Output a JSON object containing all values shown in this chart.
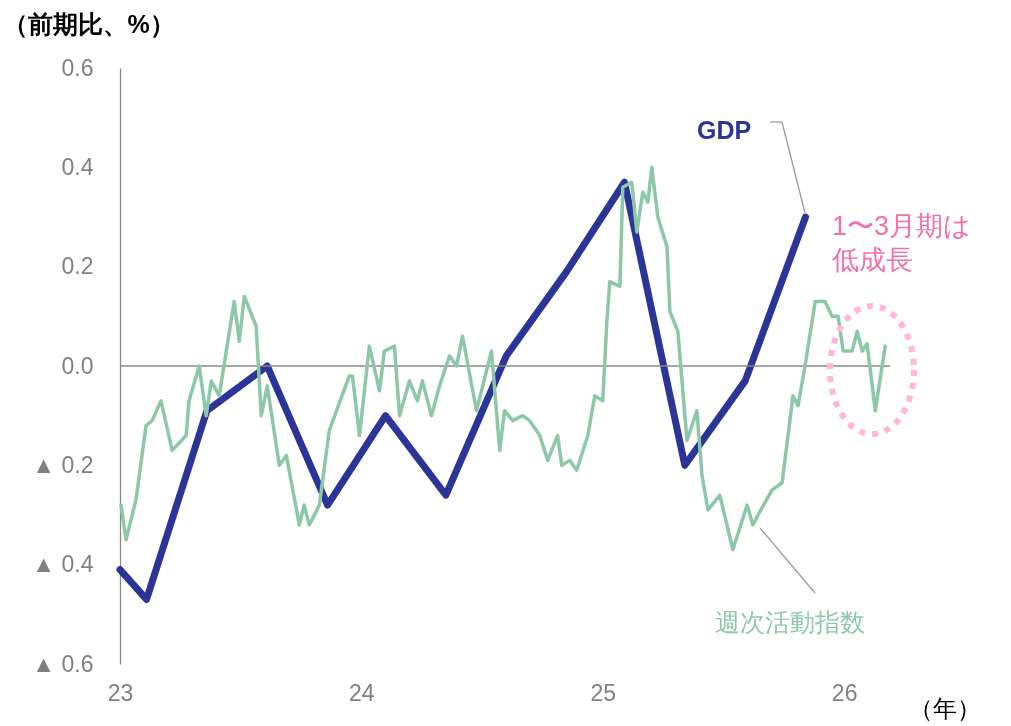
{
  "chart_data": {
    "type": "line",
    "ylabel": "（前期比、%）",
    "xlabel": "（年）",
    "xlim": [
      23,
      26.19
    ],
    "xticks": [
      23,
      24,
      25,
      26
    ],
    "ylim": [
      -0.6,
      0.6
    ],
    "yticks": [
      {
        "value": -0.6,
        "label": "▲ 0.6"
      },
      {
        "value": -0.4,
        "label": "▲ 0.4"
      },
      {
        "value": -0.2,
        "label": "▲ 0.2"
      },
      {
        "value": 0,
        "label": "0.0"
      },
      {
        "value": 0.2,
        "label": "0.2"
      },
      {
        "value": 0.4,
        "label": "0.4"
      },
      {
        "value": 0.6,
        "label": "0.6"
      }
    ],
    "ref_lines": [
      {
        "axis": "y",
        "value": 0,
        "color": "#888888"
      }
    ],
    "annotations": [
      "1〜3月期は低成長"
    ],
    "series": [
      {
        "name": "GDP",
        "color": "#2b3497",
        "x": [
          23.0,
          23.11,
          23.36,
          23.61,
          23.86,
          24.1,
          24.35,
          24.6,
          24.85,
          25.09,
          25.34,
          25.59,
          25.84
        ],
        "values": [
          -0.41,
          -0.47,
          -0.09,
          0.0,
          -0.28,
          -0.1,
          -0.26,
          0.02,
          0.19,
          0.37,
          -0.2,
          -0.03,
          0.3
        ]
      },
      {
        "name": "週次活動指数",
        "color": "#8cc8a8",
        "x": [
          23.004,
          23.025,
          23.066,
          23.108,
          23.133,
          23.17,
          23.216,
          23.274,
          23.286,
          23.328,
          23.357,
          23.378,
          23.411,
          23.473,
          23.494,
          23.515,
          23.564,
          23.585,
          23.61,
          23.66,
          23.689,
          23.743,
          23.763,
          23.784,
          23.826,
          23.867,
          23.95,
          23.963,
          23.992,
          24.033,
          24.075,
          24.095,
          24.137,
          24.158,
          24.199,
          24.232,
          24.253,
          24.29,
          24.324,
          24.365,
          24.394,
          24.419,
          24.477,
          24.539,
          24.573,
          24.593,
          24.627,
          24.668,
          24.697,
          24.739,
          24.772,
          24.813,
          24.83,
          24.863,
          24.892,
          24.938,
          24.967,
          25.0,
          25.017,
          25.029,
          25.071,
          25.083,
          25.12,
          25.141,
          25.166,
          25.187,
          25.203,
          25.228,
          25.266,
          25.278,
          25.311,
          25.349,
          25.39,
          25.411,
          25.436,
          25.485,
          25.539,
          25.598,
          25.622,
          25.643,
          25.701,
          25.743,
          25.788,
          25.809,
          25.838,
          25.88,
          25.921,
          25.95,
          25.975,
          25.996,
          26.033,
          26.054,
          26.075,
          26.095,
          26.129,
          26.17
        ],
        "values": [
          -0.28,
          -0.35,
          -0.27,
          -0.12,
          -0.11,
          -0.07,
          -0.17,
          -0.14,
          -0.07,
          0.0,
          -0.1,
          -0.03,
          -0.06,
          0.13,
          0.05,
          0.14,
          0.08,
          -0.1,
          -0.04,
          -0.2,
          -0.18,
          -0.32,
          -0.28,
          -0.32,
          -0.28,
          -0.13,
          -0.02,
          -0.02,
          -0.14,
          0.04,
          -0.05,
          0.03,
          0.04,
          -0.1,
          -0.03,
          -0.07,
          -0.03,
          -0.1,
          -0.04,
          0.02,
          0.0,
          0.06,
          -0.09,
          0.03,
          -0.17,
          -0.09,
          -0.11,
          -0.1,
          -0.11,
          -0.14,
          -0.19,
          -0.14,
          -0.2,
          -0.19,
          -0.21,
          -0.14,
          -0.06,
          -0.07,
          0.09,
          0.17,
          0.16,
          0.36,
          0.37,
          0.27,
          0.35,
          0.33,
          0.4,
          0.3,
          0.24,
          0.11,
          0.07,
          -0.15,
          -0.09,
          -0.22,
          -0.29,
          -0.26,
          -0.37,
          -0.28,
          -0.32,
          -0.3,
          -0.25,
          -0.235,
          -0.06,
          -0.08,
          0.0,
          0.13,
          0.13,
          0.1,
          0.1,
          0.03,
          0.03,
          0.07,
          0.03,
          0.045,
          -0.09,
          0.04
        ]
      }
    ]
  }
}
